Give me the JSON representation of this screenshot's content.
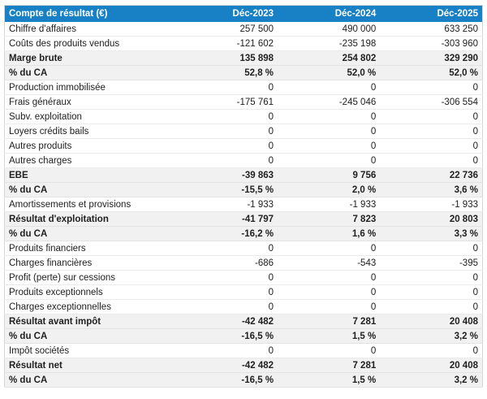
{
  "colors": {
    "header_bg": "#1880c4",
    "header_text": "#ffffff",
    "subtotal_row_bg": "#f1f1f1",
    "row_bg": "#ffffff",
    "body_text": "#212121",
    "row_border": "#ebebeb"
  },
  "table": {
    "header": {
      "label": "Compte de résultat (€)",
      "columns": [
        "Déc-2023",
        "Déc-2024",
        "Déc-2025"
      ]
    },
    "rows": [
      {
        "label": "Chiffre d'affaires",
        "values": [
          "257 500",
          "490 000",
          "633 250"
        ],
        "emphasis": false
      },
      {
        "label": "Coûts des produits vendus",
        "values": [
          "-121 602",
          "-235 198",
          "-303 960"
        ],
        "emphasis": false
      },
      {
        "label": "Marge brute",
        "values": [
          "135 898",
          "254 802",
          "329 290"
        ],
        "emphasis": true
      },
      {
        "label": "% du CA",
        "values": [
          "52,8 %",
          "52,0 %",
          "52,0 %"
        ],
        "emphasis": true
      },
      {
        "label": "Production immobilisée",
        "values": [
          "0",
          "0",
          "0"
        ],
        "emphasis": false
      },
      {
        "label": "Frais généraux",
        "values": [
          "-175 761",
          "-245 046",
          "-306 554"
        ],
        "emphasis": false
      },
      {
        "label": "Subv. exploitation",
        "values": [
          "0",
          "0",
          "0"
        ],
        "emphasis": false
      },
      {
        "label": "Loyers crédits bails",
        "values": [
          "0",
          "0",
          "0"
        ],
        "emphasis": false
      },
      {
        "label": "Autres produits",
        "values": [
          "0",
          "0",
          "0"
        ],
        "emphasis": false
      },
      {
        "label": "Autres charges",
        "values": [
          "0",
          "0",
          "0"
        ],
        "emphasis": false
      },
      {
        "label": "EBE",
        "values": [
          "-39 863",
          "9 756",
          "22 736"
        ],
        "emphasis": true
      },
      {
        "label": "% du CA",
        "values": [
          "-15,5 %",
          "2,0 %",
          "3,6 %"
        ],
        "emphasis": true
      },
      {
        "label": "Amortissements et provisions",
        "values": [
          "-1 933",
          "-1 933",
          "-1 933"
        ],
        "emphasis": false
      },
      {
        "label": "Résultat d'exploitation",
        "values": [
          "-41 797",
          "7 823",
          "20 803"
        ],
        "emphasis": true
      },
      {
        "label": "% du CA",
        "values": [
          "-16,2 %",
          "1,6 %",
          "3,3 %"
        ],
        "emphasis": true
      },
      {
        "label": "Produits financiers",
        "values": [
          "0",
          "0",
          "0"
        ],
        "emphasis": false
      },
      {
        "label": "Charges financières",
        "values": [
          "-686",
          "-543",
          "-395"
        ],
        "emphasis": false
      },
      {
        "label": "Profit (perte) sur cessions",
        "values": [
          "0",
          "0",
          "0"
        ],
        "emphasis": false
      },
      {
        "label": "Produits exceptionnels",
        "values": [
          "0",
          "0",
          "0"
        ],
        "emphasis": false
      },
      {
        "label": "Charges exceptionnelles",
        "values": [
          "0",
          "0",
          "0"
        ],
        "emphasis": false
      },
      {
        "label": "Résultat avant impôt",
        "values": [
          "-42 482",
          "7 281",
          "20 408"
        ],
        "emphasis": true
      },
      {
        "label": "% du CA",
        "values": [
          "-16,5 %",
          "1,5 %",
          "3,2 %"
        ],
        "emphasis": true
      },
      {
        "label": "Impôt sociétés",
        "values": [
          "0",
          "0",
          "0"
        ],
        "emphasis": false
      },
      {
        "label": "Résultat net",
        "values": [
          "-42 482",
          "7 281",
          "20 408"
        ],
        "emphasis": true
      },
      {
        "label": "% du CA",
        "values": [
          "-16,5 %",
          "1,5 %",
          "3,2 %"
        ],
        "emphasis": true
      }
    ]
  }
}
